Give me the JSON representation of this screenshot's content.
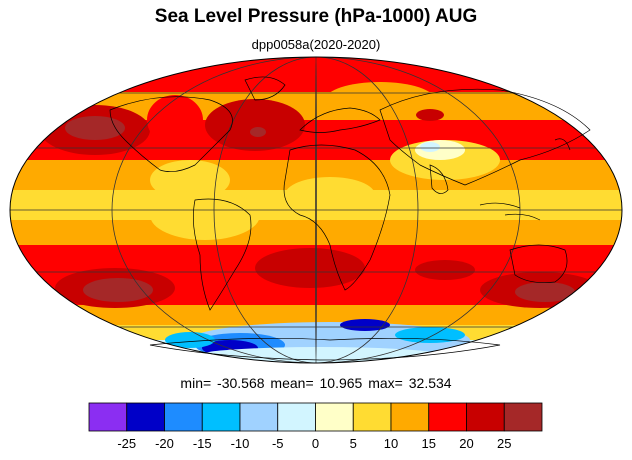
{
  "title": "Sea Level Pressure (hPa-1000) AUG",
  "subtitle": "dpp0058a(2020-2020)",
  "stats": {
    "min_label": "min=",
    "min_value": "-30.568",
    "mean_label": "mean=",
    "mean_value": "10.965",
    "max_label": "max=",
    "max_value": "32.534"
  },
  "colorbar": {
    "colors": [
      "#8b2ef2",
      "#0000c8",
      "#1e8cff",
      "#00bfff",
      "#a0d2ff",
      "#d2f5ff",
      "#ffffc8",
      "#ffdc32",
      "#ffaa00",
      "#ff0000",
      "#c80000",
      "#a52828"
    ],
    "tick_labels": [
      "-25",
      "-20",
      "-15",
      "-10",
      "-5",
      "0",
      "5",
      "10",
      "15",
      "20",
      "25"
    ]
  },
  "map": {
    "projection": "mollweide",
    "field": "sea level pressure anomaly from 1000 hPa",
    "graticule_color": "#333333",
    "coastline_color": "#000000"
  }
}
